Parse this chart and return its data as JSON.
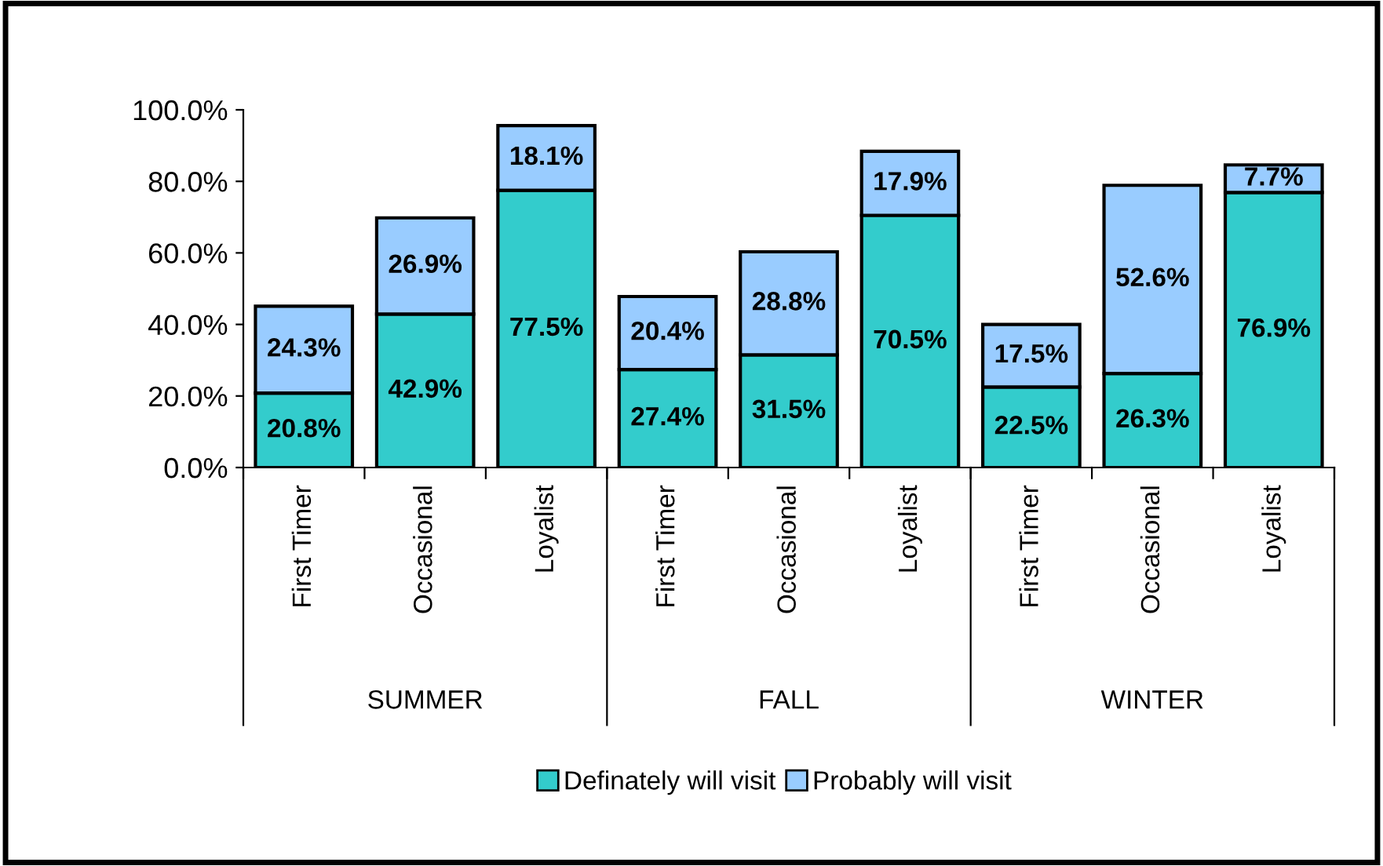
{
  "chart_data": {
    "type": "bar",
    "stacked": true,
    "categories": [
      "First Timer",
      "Occasional",
      "Loyalist",
      "First Timer",
      "Occasional",
      "Loyalist",
      "First Timer",
      "Occasional",
      "Loyalist"
    ],
    "annotations": [
      "SUMMER",
      "FALL",
      "WINTER"
    ],
    "series": [
      {
        "name": "Definately will visit",
        "color": "#33cccc",
        "values": [
          20.8,
          42.9,
          77.5,
          27.4,
          31.5,
          70.5,
          22.5,
          26.3,
          76.9
        ],
        "value_labels": [
          "20.8%",
          "42.9%",
          "77.5%",
          "27.4%",
          "31.5%",
          "70.5%",
          "22.5%",
          "26.3%",
          "76.9%"
        ]
      },
      {
        "name": "Probably will visit",
        "color": "#99ccff",
        "values": [
          24.3,
          26.9,
          18.1,
          20.4,
          28.8,
          17.9,
          17.5,
          52.6,
          7.7
        ],
        "value_labels": [
          "24.3%",
          "26.9%",
          "18.1%",
          "20.4%",
          "28.8%",
          "17.9%",
          "17.5%",
          "52.6%",
          "7.7%"
        ]
      }
    ],
    "ylim": [
      0,
      100
    ],
    "yticks": [
      {
        "value": 0,
        "label": "0.0%"
      },
      {
        "value": 20,
        "label": "20.0%"
      },
      {
        "value": 40,
        "label": "40.0%"
      },
      {
        "value": 60,
        "label": "60.0%"
      },
      {
        "value": 80,
        "label": "80.0%"
      },
      {
        "value": 100,
        "label": "100.0%"
      }
    ],
    "grid": false,
    "legend": "bottom"
  }
}
